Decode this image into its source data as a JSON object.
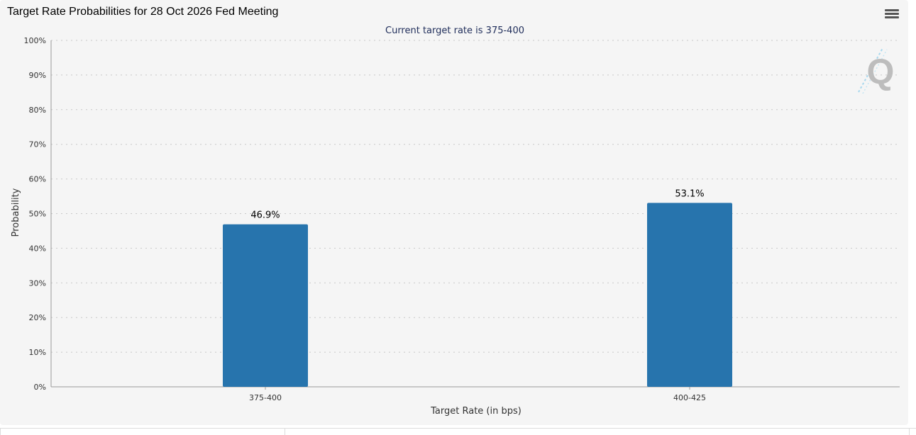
{
  "page": {
    "title": "Target Rate Probabilities for 28 Oct 2026 Fed Meeting"
  },
  "menu": {
    "icon": "hamburger-menu-icon"
  },
  "watermark": {
    "icon": "quikstrike-q-logo-icon",
    "letter": "Q"
  },
  "colors": {
    "bar": "#2774ad",
    "subtitle": "#1f2d5a",
    "grid": "#c8c8c8",
    "axis": "#999999",
    "text": "#333333"
  },
  "chart_data": {
    "type": "bar",
    "title": "Target Rate Probabilities for 28 Oct 2026 Fed Meeting",
    "subtitle": "Current target rate is 375-400",
    "xlabel": "Target Rate (in bps)",
    "ylabel": "Probability",
    "categories": [
      "375-400",
      "400-425"
    ],
    "values": [
      46.9,
      53.1
    ],
    "data_labels": [
      "46.9%",
      "53.1%"
    ],
    "ylim": [
      0,
      100
    ],
    "yticks": [
      0,
      10,
      20,
      30,
      40,
      50,
      60,
      70,
      80,
      90,
      100
    ],
    "ytick_labels": [
      "0%",
      "10%",
      "20%",
      "30%",
      "40%",
      "50%",
      "60%",
      "70%",
      "80%",
      "90%",
      "100%"
    ],
    "grid": true,
    "legend": "none"
  }
}
